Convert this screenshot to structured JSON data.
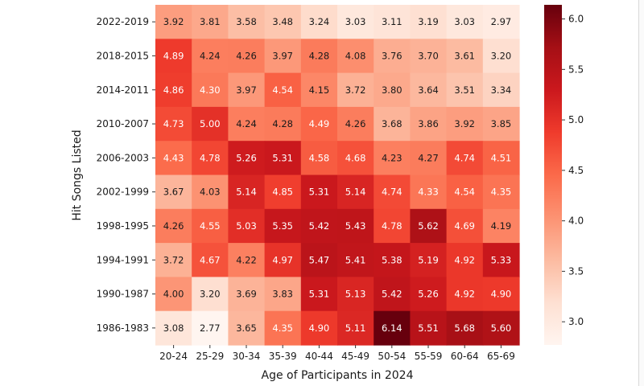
{
  "chart_data": {
    "type": "heatmap",
    "title": "",
    "xlabel": "Age of Participants in 2024",
    "ylabel": "Hit Songs Listed",
    "x_categories": [
      "20-24",
      "25-29",
      "30-34",
      "35-39",
      "40-44",
      "45-49",
      "50-54",
      "55-59",
      "60-64",
      "65-69"
    ],
    "y_categories": [
      "2022-2019",
      "2018-2015",
      "2014-2011",
      "2010-2007",
      "2006-2003",
      "2002-1999",
      "1998-1995",
      "1994-1991",
      "1990-1987",
      "1986-1983"
    ],
    "values": [
      [
        3.92,
        3.81,
        3.58,
        3.48,
        3.24,
        3.03,
        3.11,
        3.19,
        3.03,
        2.97
      ],
      [
        4.89,
        4.24,
        4.26,
        3.97,
        4.28,
        4.08,
        3.76,
        3.7,
        3.61,
        3.2
      ],
      [
        4.86,
        4.3,
        3.97,
        4.54,
        4.15,
        3.72,
        3.8,
        3.64,
        3.51,
        3.34
      ],
      [
        4.73,
        5.0,
        4.24,
        4.28,
        4.49,
        4.26,
        3.68,
        3.86,
        3.92,
        3.85
      ],
      [
        4.43,
        4.78,
        5.26,
        5.31,
        4.58,
        4.68,
        4.23,
        4.27,
        4.74,
        4.51
      ],
      [
        3.67,
        4.03,
        5.14,
        4.85,
        5.31,
        5.14,
        4.74,
        4.33,
        4.54,
        4.35
      ],
      [
        4.26,
        4.55,
        5.03,
        5.35,
        5.42,
        5.43,
        4.78,
        5.62,
        4.69,
        4.19
      ],
      [
        3.72,
        4.67,
        4.22,
        4.97,
        5.47,
        5.41,
        5.38,
        5.19,
        4.92,
        5.33
      ],
      [
        4.0,
        3.2,
        3.69,
        3.83,
        5.31,
        5.13,
        5.42,
        5.26,
        4.92,
        4.9
      ],
      [
        3.08,
        2.77,
        3.65,
        4.35,
        4.9,
        5.11,
        6.14,
        5.51,
        5.68,
        5.6
      ]
    ],
    "colormap": "Reds",
    "vmin": 2.77,
    "vmax": 6.14,
    "colorbar_ticks": [
      "3.0",
      "3.5",
      "4.0",
      "4.5",
      "5.0",
      "5.5",
      "6.0"
    ],
    "colorbar_tick_values": [
      3.0,
      3.5,
      4.0,
      4.5,
      5.0,
      5.5,
      6.0
    ]
  }
}
